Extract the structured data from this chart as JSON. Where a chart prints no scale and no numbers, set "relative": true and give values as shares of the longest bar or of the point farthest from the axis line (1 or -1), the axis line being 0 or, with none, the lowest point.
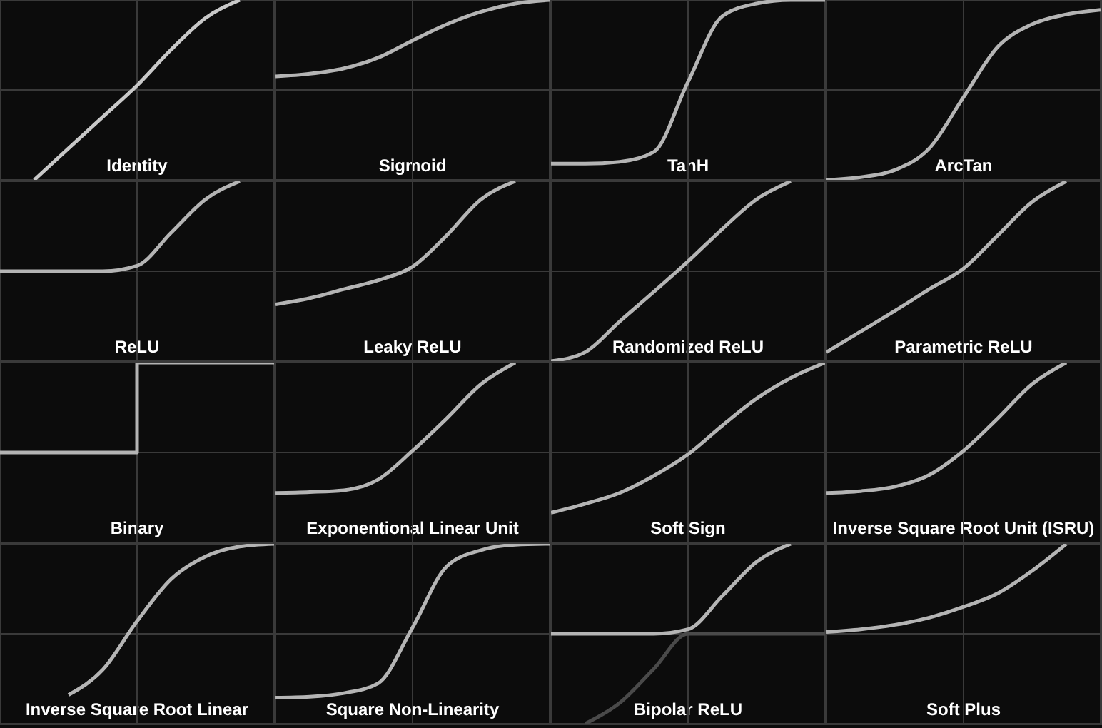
{
  "chart_data": [
    {
      "type": "line",
      "title": "Identity",
      "relative": true,
      "grid": true,
      "categories": [
        null,
        null,
        null,
        null,
        null,
        null,
        null,
        null,
        null
      ],
      "series": [
        {
          "color": "#c8c8c8",
          "values": [
            null,
            -1,
            -0.65,
            -0.3,
            0.05,
            0.45,
            0.8,
            1,
            null
          ]
        }
      ]
    },
    {
      "type": "line",
      "title": "Sigmoid",
      "relative": true,
      "grid": true,
      "categories": [
        null,
        null,
        null,
        null,
        null,
        null,
        null,
        null,
        null
      ],
      "series": [
        {
          "color": "#b4b4b4",
          "values": [
            0.15,
            0.18,
            0.24,
            0.36,
            0.55,
            0.73,
            0.87,
            0.96,
            1
          ]
        }
      ]
    },
    {
      "type": "line",
      "title": "TanH",
      "relative": true,
      "grid": true,
      "categories": [
        null,
        null,
        null,
        null,
        null,
        null,
        null,
        null,
        null
      ],
      "series": [
        {
          "color": "#b4b4b4",
          "values": [
            -0.82,
            -0.82,
            -0.8,
            -0.69,
            0.09,
            0.82,
            0.96,
            1,
            1
          ]
        }
      ]
    },
    {
      "type": "line",
      "title": "ArcTan",
      "relative": true,
      "grid": true,
      "categories": [
        null,
        null,
        null,
        null,
        null,
        null,
        null,
        null,
        null
      ],
      "series": [
        {
          "color": "#b4b4b4",
          "values": [
            -1,
            -0.97,
            -0.89,
            -0.65,
            -0.08,
            0.48,
            0.73,
            0.84,
            0.89
          ]
        }
      ]
    },
    {
      "type": "line",
      "title": "ReLU",
      "relative": true,
      "grid": true,
      "categories": [
        null,
        null,
        null,
        null,
        null,
        null,
        null,
        null,
        null
      ],
      "series": [
        {
          "color": "#b4b4b4",
          "values": [
            0,
            0,
            0,
            0,
            0.06,
            0.43,
            0.8,
            1,
            null
          ]
        }
      ]
    },
    {
      "type": "line",
      "title": "Leaky ReLU",
      "relative": true,
      "grid": true,
      "categories": [
        null,
        null,
        null,
        null,
        null,
        null,
        null,
        null,
        null
      ],
      "series": [
        {
          "color": "#b4b4b4",
          "values": [
            -0.37,
            -0.3,
            -0.2,
            -0.1,
            0.05,
            0.4,
            0.8,
            1,
            null
          ]
        }
      ]
    },
    {
      "type": "line",
      "title": "Randomized ReLU",
      "relative": true,
      "grid": true,
      "categories": [
        null,
        null,
        null,
        null,
        null,
        null,
        null,
        null,
        null
      ],
      "series": [
        {
          "color": "#b4b4b4",
          "values": [
            -1,
            -0.9,
            -0.56,
            -0.23,
            0.11,
            0.47,
            0.8,
            1,
            null
          ]
        }
      ]
    },
    {
      "type": "line",
      "title": "Parametric ReLU",
      "relative": true,
      "grid": true,
      "categories": [
        null,
        null,
        null,
        null,
        null,
        null,
        null,
        null,
        null
      ],
      "series": [
        {
          "color": "#b4b4b4",
          "values": [
            -0.9,
            -0.67,
            -0.44,
            -0.2,
            0.03,
            0.4,
            0.77,
            1,
            null
          ]
        }
      ]
    },
    {
      "type": "step",
      "title": "Binary",
      "relative": true,
      "grid": true,
      "categories": [
        null,
        null,
        null,
        null,
        null,
        null,
        null,
        null,
        null
      ],
      "series": [
        {
          "color": "#b4b4b4",
          "values": [
            0,
            0,
            0,
            0,
            1,
            1,
            1,
            1,
            1
          ]
        }
      ]
    },
    {
      "type": "line",
      "title": "Exponentional Linear Unit",
      "relative": true,
      "grid": true,
      "categories": [
        null,
        null,
        null,
        null,
        null,
        null,
        null,
        null,
        null
      ],
      "series": [
        {
          "color": "#b4b4b4",
          "values": [
            -0.45,
            -0.44,
            -0.42,
            -0.3,
            0.02,
            0.38,
            0.76,
            1,
            null
          ]
        }
      ]
    },
    {
      "type": "line",
      "title": "Soft Sign",
      "relative": true,
      "grid": true,
      "categories": [
        null,
        null,
        null,
        null,
        null,
        null,
        null,
        null,
        null
      ],
      "series": [
        {
          "color": "#b4b4b4",
          "values": [
            -0.67,
            -0.57,
            -0.45,
            -0.26,
            -0.02,
            0.3,
            0.6,
            0.83,
            1
          ]
        }
      ]
    },
    {
      "type": "line",
      "title": "Inverse Square Root Unit (ISRU)",
      "relative": true,
      "grid": true,
      "categories": [
        null,
        null,
        null,
        null,
        null,
        null,
        null,
        null,
        null
      ],
      "series": [
        {
          "color": "#b4b4b4",
          "values": [
            -0.45,
            -0.43,
            -0.38,
            -0.25,
            0.02,
            0.38,
            0.76,
            1,
            null
          ]
        }
      ]
    },
    {
      "type": "line",
      "title": "Inverse Square Root Linear",
      "relative": true,
      "grid": true,
      "categories": [
        null,
        null,
        null,
        null,
        null,
        null,
        null,
        null,
        null
      ],
      "series": [
        {
          "color": "#b4b4b4",
          "values": [
            null,
            null,
            -0.68,
            -0.4,
            0.14,
            0.61,
            0.86,
            0.97,
            1
          ]
        }
      ]
    },
    {
      "type": "line",
      "title": "Square Non-Linearity",
      "relative": true,
      "grid": true,
      "categories": [
        null,
        null,
        null,
        null,
        null,
        null,
        null,
        null,
        null
      ],
      "series": [
        {
          "color": "#b4b4b4",
          "values": [
            -0.71,
            -0.7,
            -0.66,
            -0.55,
            0.07,
            0.75,
            0.93,
            0.99,
            1
          ]
        }
      ]
    },
    {
      "type": "line",
      "title": "Bipolar ReLU",
      "relative": true,
      "grid": true,
      "categories": [
        null,
        null,
        null,
        null,
        null,
        null,
        null,
        null,
        null
      ],
      "series": [
        {
          "color": "#b4b4b4",
          "values": [
            0,
            0,
            0,
            0,
            0.05,
            0.42,
            0.8,
            1,
            null
          ]
        },
        {
          "color": "#4a4a4a",
          "values": [
            null,
            -1,
            -0.77,
            -0.39,
            0,
            0,
            0,
            0,
            0
          ]
        }
      ]
    },
    {
      "type": "line",
      "title": "Soft Plus",
      "relative": true,
      "grid": true,
      "categories": [
        null,
        null,
        null,
        null,
        null,
        null,
        null,
        null,
        null
      ],
      "series": [
        {
          "color": "#b4b4b4",
          "values": [
            0.02,
            0.05,
            0.1,
            0.18,
            0.3,
            0.45,
            0.7,
            1,
            null
          ]
        }
      ]
    }
  ]
}
